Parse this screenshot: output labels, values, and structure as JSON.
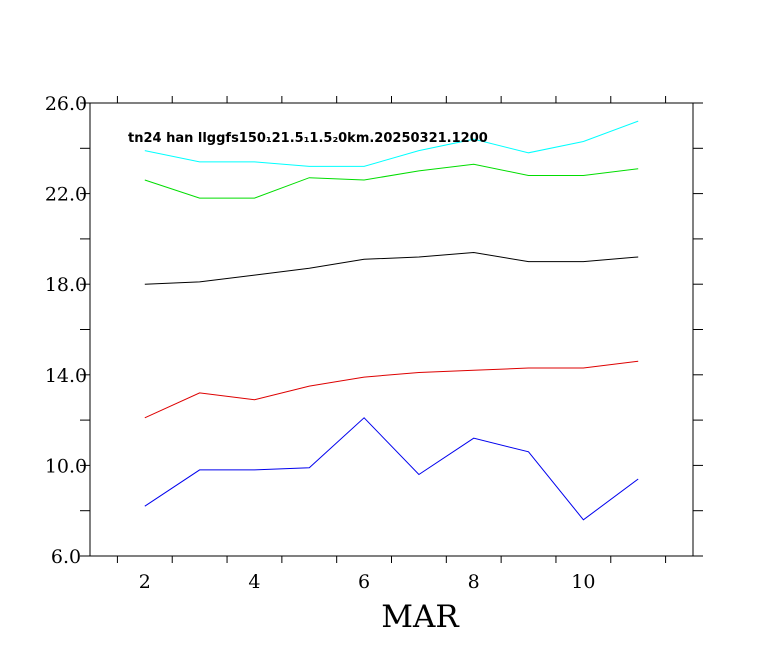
{
  "chart_data": {
    "type": "line",
    "title": "tn24 han llggfs150₁21.5₁1.5₂0km.20250321.1200",
    "xlabel": "MAR",
    "ylabel": "",
    "xlim": [
      0.5,
      11.5
    ],
    "ylim": [
      6.0,
      26.0
    ],
    "x_ticks": [
      2,
      4,
      6,
      8,
      10
    ],
    "x_tick_labels": [
      "2",
      "4",
      "6",
      "8",
      "10"
    ],
    "y_ticks": [
      6.0,
      10.0,
      14.0,
      18.0,
      22.0,
      26.0
    ],
    "y_tick_labels": [
      "6.0",
      "10.0",
      "14.0",
      "18.0",
      "22.0",
      "26.0"
    ],
    "grid": false,
    "legend": "none",
    "x": [
      1.5,
      2.5,
      3.5,
      4.5,
      5.5,
      6.5,
      7.5,
      8.5,
      9.5,
      10.5
    ],
    "series": [
      {
        "color": "#00ffff",
        "values": [
          23.9,
          23.4,
          23.4,
          23.2,
          23.2,
          23.9,
          24.4,
          23.8,
          24.3,
          25.2
        ]
      },
      {
        "color": "#00dd00",
        "values": [
          22.6,
          21.8,
          21.8,
          22.7,
          22.6,
          23.0,
          23.3,
          22.8,
          22.8,
          23.1
        ]
      },
      {
        "color": "#000000",
        "values": [
          18.0,
          18.1,
          18.4,
          18.7,
          19.1,
          19.2,
          19.4,
          19.0,
          19.0,
          19.2
        ]
      },
      {
        "color": "#dd0000",
        "values": [
          12.1,
          13.2,
          12.9,
          13.5,
          13.9,
          14.1,
          14.2,
          14.3,
          14.3,
          14.6
        ]
      },
      {
        "color": "#0000ee",
        "values": [
          8.2,
          9.8,
          9.8,
          9.9,
          12.1,
          9.6,
          11.2,
          10.6,
          7.6,
          9.4
        ]
      }
    ]
  }
}
